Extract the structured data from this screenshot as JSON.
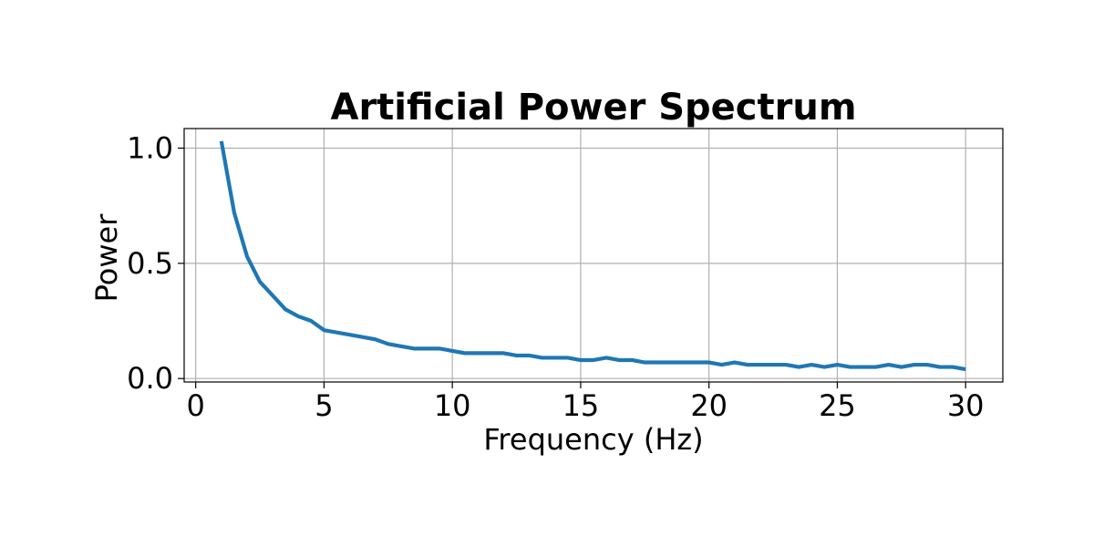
{
  "chart_data": {
    "type": "line",
    "title": "Artificial Power Spectrum",
    "xlabel": "Frequency (Hz)",
    "ylabel": "Power",
    "xlim": [
      -0.45,
      31.45
    ],
    "ylim": [
      -0.015,
      1.085
    ],
    "xticks": [
      0,
      5,
      10,
      15,
      20,
      25,
      30
    ],
    "xtick_labels": [
      "0",
      "5",
      "10",
      "15",
      "20",
      "25",
      "30"
    ],
    "yticks": [
      0.0,
      0.5,
      1.0
    ],
    "ytick_labels": [
      "0.0",
      "0.5",
      "1.0"
    ],
    "grid": true,
    "legend": "none",
    "series": [
      {
        "color": "#1f77b4",
        "x": [
          1.0,
          1.5,
          2.0,
          2.5,
          3.0,
          3.5,
          4.0,
          4.5,
          5.0,
          5.5,
          6.0,
          6.5,
          7.0,
          7.5,
          8.0,
          8.5,
          9.0,
          9.5,
          10.0,
          10.5,
          11.0,
          11.5,
          12.0,
          12.5,
          13.0,
          13.5,
          14.0,
          14.5,
          15.0,
          15.5,
          16.0,
          16.5,
          17.0,
          17.5,
          18.0,
          18.5,
          19.0,
          19.5,
          20.0,
          20.5,
          21.0,
          21.5,
          22.0,
          22.5,
          23.0,
          23.5,
          24.0,
          24.5,
          25.0,
          25.5,
          26.0,
          26.5,
          27.0,
          27.5,
          28.0,
          28.5,
          29.0,
          29.5,
          30.0
        ],
        "y": [
          1.03,
          0.72,
          0.53,
          0.42,
          0.36,
          0.3,
          0.27,
          0.25,
          0.21,
          0.2,
          0.19,
          0.18,
          0.17,
          0.15,
          0.14,
          0.13,
          0.13,
          0.13,
          0.12,
          0.11,
          0.11,
          0.11,
          0.11,
          0.1,
          0.1,
          0.09,
          0.09,
          0.09,
          0.08,
          0.08,
          0.09,
          0.08,
          0.08,
          0.07,
          0.07,
          0.07,
          0.07,
          0.07,
          0.07,
          0.06,
          0.07,
          0.06,
          0.06,
          0.06,
          0.06,
          0.05,
          0.06,
          0.05,
          0.06,
          0.05,
          0.05,
          0.05,
          0.06,
          0.05,
          0.06,
          0.06,
          0.05,
          0.05,
          0.04
        ]
      }
    ]
  }
}
